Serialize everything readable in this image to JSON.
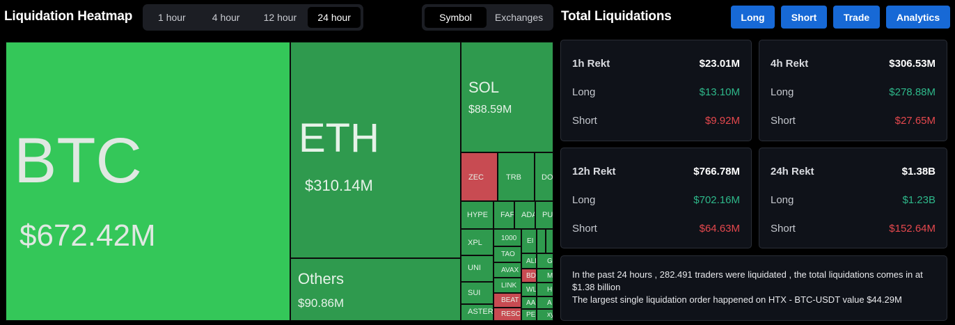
{
  "header": {
    "title": "Liquidation Heatmap",
    "timeframes": [
      "1 hour",
      "4 hour",
      "12 hour",
      "24 hour"
    ],
    "active_timeframe": "24 hour",
    "modes": [
      "Symbol",
      "Exchanges"
    ],
    "active_mode": "Symbol"
  },
  "totals_header": {
    "title": "Total Liquidations",
    "buttons": [
      "Long",
      "Short",
      "Trade",
      "Analytics"
    ],
    "button_color": "#1769d6"
  },
  "heatmap": {
    "colors": {
      "bright_green": "#34c759",
      "green": "#2f9a4e",
      "red": "#c84b52"
    },
    "cells": [
      {
        "symbol": "BTC",
        "value": "$672.42M",
        "color": "bright_green"
      },
      {
        "symbol": "ETH",
        "value": "$310.14M",
        "color": "green"
      },
      {
        "symbol": "Others",
        "value": "$90.86M",
        "color": "green"
      },
      {
        "symbol": "SOL",
        "value": "$88.59M",
        "color": "green"
      },
      {
        "symbol": "ZEC",
        "color": "red"
      },
      {
        "symbol": "TRB",
        "color": "green"
      },
      {
        "symbol": "DO",
        "color": "green"
      },
      {
        "symbol": "HYPE",
        "color": "green"
      },
      {
        "symbol": "FAF",
        "color": "green"
      },
      {
        "symbol": "ADA",
        "color": "green"
      },
      {
        "symbol": "PU",
        "color": "green"
      },
      {
        "symbol": "XPL",
        "color": "green"
      },
      {
        "symbol": "1000",
        "color": "green"
      },
      {
        "symbol": "EI",
        "color": "green"
      },
      {
        "symbol": "",
        "color": "green"
      },
      {
        "symbol": "",
        "color": "green"
      },
      {
        "symbol": "TAO",
        "color": "green"
      },
      {
        "symbol": "UNI",
        "color": "green"
      },
      {
        "symbol": "AVAX",
        "color": "green"
      },
      {
        "symbol": "ALL",
        "color": "green"
      },
      {
        "symbol": "G",
        "color": "green"
      },
      {
        "symbol": "BD",
        "color": "red"
      },
      {
        "symbol": "M",
        "color": "green"
      },
      {
        "symbol": "SUI",
        "color": "green"
      },
      {
        "symbol": "LINK",
        "color": "green"
      },
      {
        "symbol": "WL",
        "color": "green"
      },
      {
        "symbol": "H",
        "color": "green"
      },
      {
        "symbol": "BEAT",
        "color": "red"
      },
      {
        "symbol": "AA",
        "color": "green"
      },
      {
        "symbol": "A",
        "color": "green"
      },
      {
        "symbol": "ASTER",
        "color": "green"
      },
      {
        "symbol": "RESC",
        "color": "red"
      },
      {
        "symbol": "PE",
        "color": "green"
      },
      {
        "symbol": "xy",
        "color": "green"
      }
    ]
  },
  "rekt_cards": [
    {
      "label": "1h Rekt",
      "total": "$23.01M",
      "long_label": "Long",
      "long": "$13.10M",
      "short_label": "Short",
      "short": "$9.92M"
    },
    {
      "label": "4h Rekt",
      "total": "$306.53M",
      "long_label": "Long",
      "long": "$278.88M",
      "short_label": "Short",
      "short": "$27.65M"
    },
    {
      "label": "12h Rekt",
      "total": "$766.78M",
      "long_label": "Long",
      "long": "$702.16M",
      "short_label": "Short",
      "short": "$64.63M"
    },
    {
      "label": "24h Rekt",
      "total": "$1.38B",
      "long_label": "Long",
      "long": "$1.23B",
      "short_label": "Short",
      "short": "$152.64M"
    }
  ],
  "summary": {
    "line1": "In the past 24 hours , 282.491 traders were liquidated , the total liquidations comes in at $1.38 billion",
    "line2": "The largest single liquidation order happened on HTX - BTC-USDT value $44.29M"
  },
  "colors": {
    "long_value": "#2eb88a",
    "short_value": "#e5484d",
    "card_bg": "#0f1219",
    "page_bg": "#000000"
  }
}
